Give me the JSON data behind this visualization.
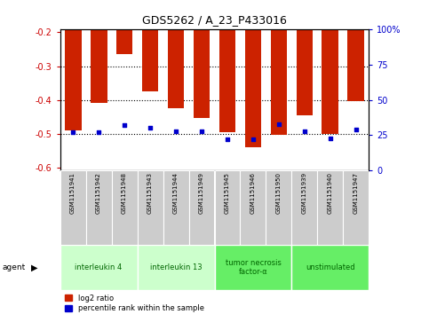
{
  "title": "GDS5262 / A_23_P433016",
  "samples": [
    "GSM1151941",
    "GSM1151942",
    "GSM1151948",
    "GSM1151943",
    "GSM1151944",
    "GSM1151949",
    "GSM1151945",
    "GSM1151946",
    "GSM1151950",
    "GSM1151939",
    "GSM1151940",
    "GSM1151947"
  ],
  "log2_ratios": [
    -0.49,
    -0.41,
    -0.265,
    -0.375,
    -0.425,
    -0.455,
    -0.495,
    -0.54,
    -0.505,
    -0.445,
    -0.5,
    -0.405
  ],
  "percentile_ranks": [
    27,
    27,
    32,
    30,
    28,
    28,
    22,
    22,
    33,
    28,
    23,
    29
  ],
  "agents": [
    {
      "label": "interleukin 4",
      "color": "#ccffcc",
      "count": 3
    },
    {
      "label": "interleukin 13",
      "color": "#ccffcc",
      "count": 3
    },
    {
      "label": "tumor necrosis\nfactor-α",
      "color": "#66ee66",
      "count": 3
    },
    {
      "label": "unstimulated",
      "color": "#66ee66",
      "count": 3
    }
  ],
  "ylim_left": [
    -0.61,
    -0.19
  ],
  "yticks_left": [
    -0.6,
    -0.5,
    -0.4,
    -0.3,
    -0.2
  ],
  "ylim_right": [
    0,
    100
  ],
  "yticks_right": [
    0,
    25,
    50,
    75,
    100
  ],
  "bar_color": "#cc2200",
  "dot_color": "#0000cc",
  "left_axis_color": "#cc0000",
  "right_axis_color": "#0000cc",
  "sample_box_color": "#cccccc",
  "grid_levels": [
    -0.3,
    -0.4,
    -0.5
  ]
}
